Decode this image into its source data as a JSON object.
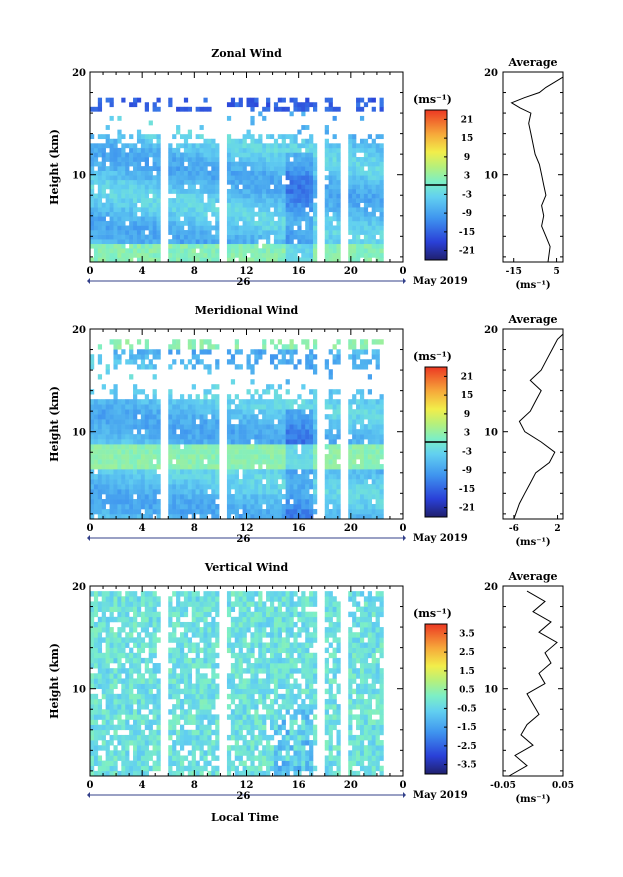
{
  "figure": {
    "xlabel": "Local Time",
    "date_label": "May 2019",
    "day_label": "26",
    "colorbar_unit": "(ms⁻¹)",
    "average_unit": "(ms⁻¹)"
  },
  "chart_data": [
    {
      "type": "heatmap",
      "title": "Zonal Wind",
      "ylabel": "Height (km)",
      "xlabel": "Local Time",
      "x_ticks": [
        "0",
        "4",
        "8",
        "12",
        "16",
        "20",
        "0"
      ],
      "xlim": [
        0,
        24
      ],
      "y_ticks": [
        "10",
        "20"
      ],
      "ylim": [
        1.5,
        20
      ],
      "colorbar": {
        "unit": "(ms⁻¹)",
        "ticks": [
          "21",
          "15",
          "9",
          "3",
          "-3",
          "-9",
          "-15",
          "-21"
        ],
        "range": [
          -24,
          24
        ],
        "zero_line": true
      },
      "gaps_hours": [
        5.7,
        10.2,
        17.8,
        19.4
      ],
      "data_top_km": 17.5,
      "average": {
        "title": "Average",
        "xlabel": "(ms⁻¹)",
        "x_ticks": [
          "-15",
          "5"
        ],
        "xlim": [
          -20,
          8
        ],
        "y_ticks": [
          "10",
          "20"
        ],
        "height_km": [
          1.5,
          3,
          4,
          5,
          6,
          7,
          8,
          9,
          10,
          11,
          12,
          13,
          14,
          15,
          16,
          16.5,
          17,
          17.5,
          18,
          18.5,
          19,
          19.5
        ],
        "values": [
          1,
          2,
          0,
          -2,
          -1,
          -2,
          0,
          -1,
          -2,
          -3,
          -5,
          -6,
          -7,
          -8,
          -7,
          -12,
          -16,
          -10,
          -3,
          0,
          4,
          8
        ]
      }
    },
    {
      "type": "heatmap",
      "title": "Meridional Wind",
      "ylabel": "Height (km)",
      "xlabel": "Local Time",
      "x_ticks": [
        "0",
        "4",
        "8",
        "12",
        "16",
        "20",
        "0"
      ],
      "xlim": [
        0,
        24
      ],
      "y_ticks": [
        "10",
        "20"
      ],
      "ylim": [
        1.5,
        20
      ],
      "colorbar": {
        "unit": "(ms⁻¹)",
        "ticks": [
          "21",
          "15",
          "9",
          "3",
          "-3",
          "-9",
          "-15",
          "-21"
        ],
        "range": [
          -24,
          24
        ],
        "zero_line": true
      },
      "gaps_hours": [
        5.7,
        10.2,
        17.8,
        19.4
      ],
      "data_top_km": 19,
      "average": {
        "title": "Average",
        "xlabel": "(ms⁻¹)",
        "x_ticks": [
          "-6",
          "2"
        ],
        "xlim": [
          -8,
          3
        ],
        "y_ticks": [
          "10",
          "20"
        ],
        "height_km": [
          1.5,
          3,
          4,
          5,
          6,
          7,
          8,
          9,
          10,
          11,
          12,
          13,
          14,
          15,
          16,
          17,
          18,
          19,
          19.5
        ],
        "values": [
          -6,
          -5,
          -4,
          -3,
          -2,
          0.5,
          1.5,
          -1,
          -4,
          -5,
          -3,
          -2,
          -1,
          -3,
          -1,
          0,
          1,
          2,
          3
        ]
      }
    },
    {
      "type": "heatmap",
      "title": "Vertical Wind",
      "ylabel": "Height (km)",
      "xlabel": "Local Time",
      "x_ticks": [
        "0",
        "4",
        "8",
        "12",
        "16",
        "20",
        "0"
      ],
      "xlim": [
        0,
        24
      ],
      "y_ticks": [
        "10",
        "20"
      ],
      "ylim": [
        1.5,
        20
      ],
      "colorbar": {
        "unit": "(ms⁻¹)",
        "ticks": [
          "3.5",
          "2.5",
          "1.5",
          "0.5",
          "-0.5",
          "-1.5",
          "-2.5",
          "-3.5"
        ],
        "range": [
          -4,
          4
        ],
        "zero_line": false
      },
      "gaps_hours": [
        5.7,
        10.2,
        17.8,
        19.4
      ],
      "data_top_km": 19.5,
      "average": {
        "title": "Average",
        "xlabel": "(ms⁻¹)",
        "x_ticks": [
          "-0.05",
          "0.05"
        ],
        "xlim": [
          -0.05,
          0.05
        ],
        "y_ticks": [
          "10",
          "20"
        ],
        "height_km": [
          1.5,
          2.5,
          3.5,
          4.5,
          5.5,
          6.5,
          7.5,
          8.5,
          9.5,
          10.5,
          11.5,
          12.5,
          13.5,
          14.5,
          15.5,
          16.5,
          17.5,
          18.5,
          19.5
        ],
        "values": [
          -0.04,
          -0.01,
          -0.03,
          0.0,
          -0.02,
          -0.01,
          0.01,
          0.0,
          -0.01,
          0.02,
          0.01,
          0.03,
          0.02,
          0.04,
          0.01,
          0.03,
          0.0,
          0.02,
          -0.01
        ]
      }
    }
  ]
}
